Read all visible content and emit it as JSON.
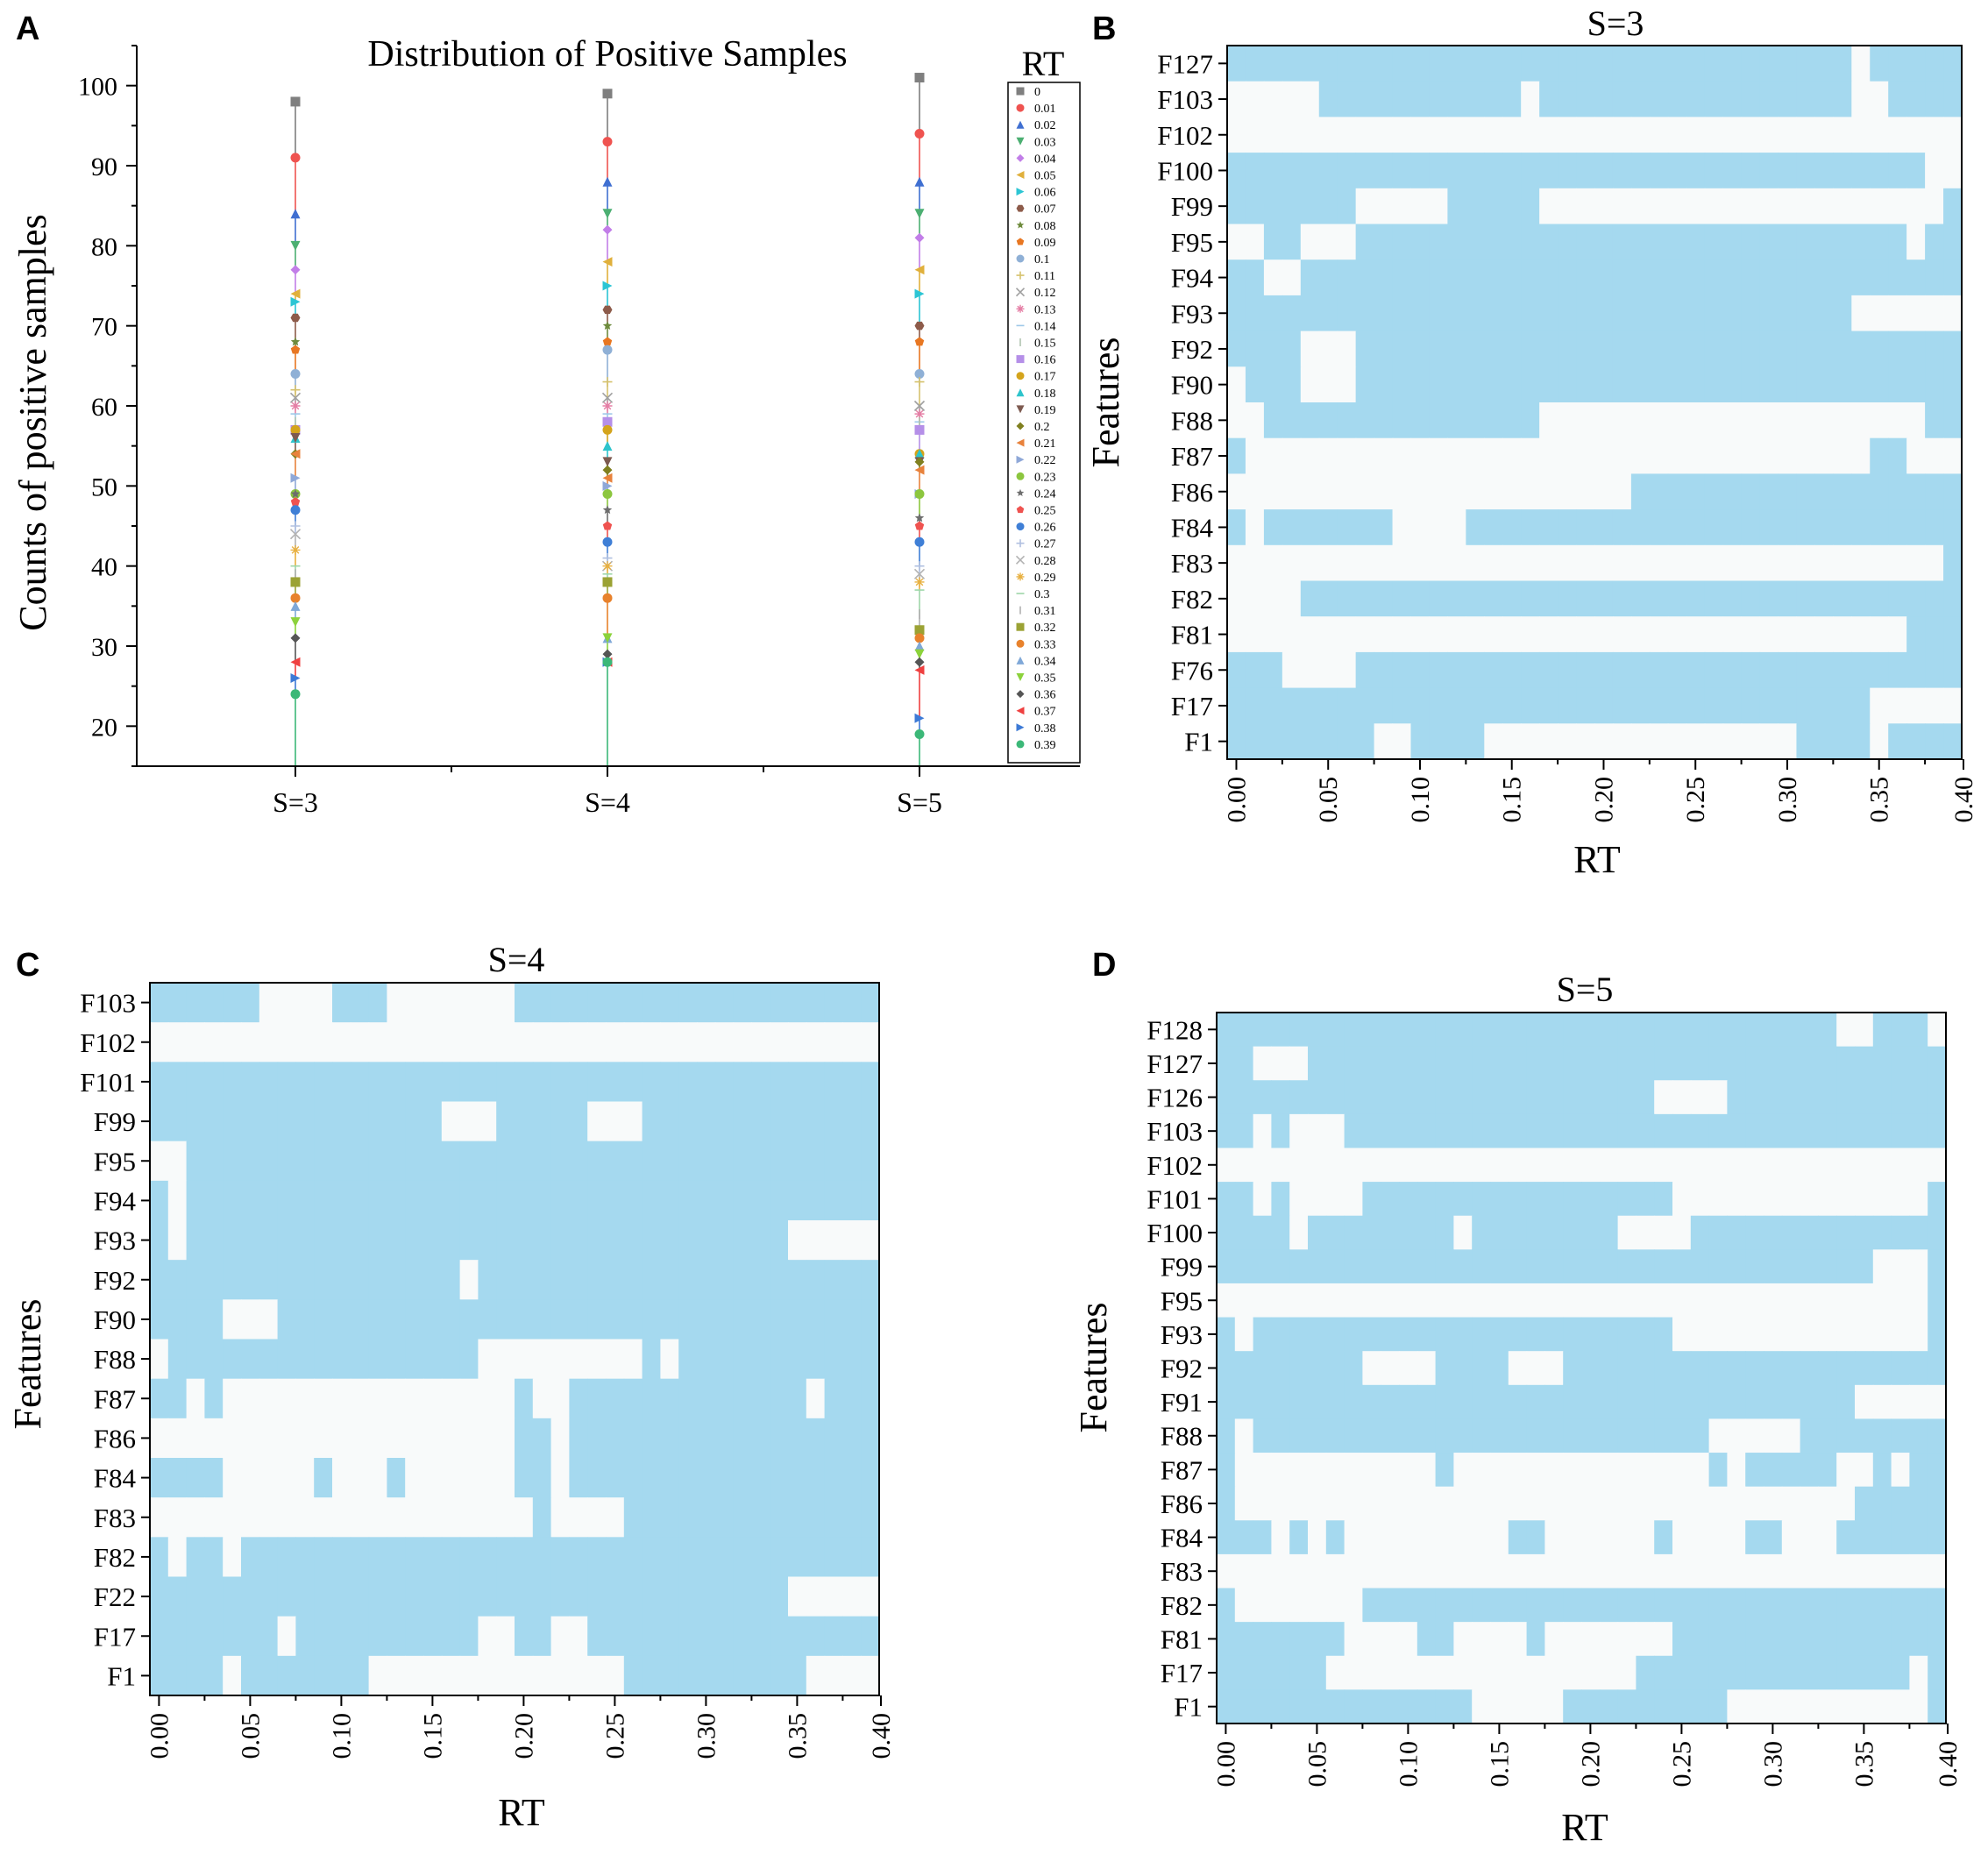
{
  "colors": {
    "cell_on": "#a5d9ef",
    "cell_off": "#f8fafa",
    "axis": "#000000"
  },
  "panels": {
    "a": "A",
    "b": "B",
    "c": "C",
    "d": "D"
  },
  "chart_data": [
    {
      "type": "scatter",
      "panel": "A",
      "title": "Distribution of Positive Samples",
      "xlabel": "",
      "ylabel": "Counts of positive samples",
      "categories": [
        "S=3",
        "S=4",
        "S=5"
      ],
      "ylim": [
        15,
        105
      ],
      "yticks": [
        20,
        30,
        40,
        50,
        60,
        70,
        80,
        90,
        100
      ],
      "legend_title": "RT",
      "legend_position": "right",
      "series": [
        {
          "name": "0",
          "color": "#7f7f7f",
          "marker": "square",
          "values": [
            98,
            99,
            101
          ]
        },
        {
          "name": "0.01",
          "color": "#ef5350",
          "marker": "circle",
          "values": [
            91,
            93,
            94
          ]
        },
        {
          "name": "0.02",
          "color": "#3f6fd1",
          "marker": "triangle-up",
          "values": [
            84,
            88,
            88
          ]
        },
        {
          "name": "0.03",
          "color": "#4caf72",
          "marker": "triangle-down",
          "values": [
            80,
            84,
            84
          ]
        },
        {
          "name": "0.04",
          "color": "#c27ee8",
          "marker": "diamond",
          "values": [
            77,
            82,
            81
          ]
        },
        {
          "name": "0.05",
          "color": "#e0b03c",
          "marker": "triangle-left",
          "values": [
            74,
            78,
            77
          ]
        },
        {
          "name": "0.06",
          "color": "#2cc5d4",
          "marker": "triangle-right",
          "values": [
            73,
            75,
            74
          ]
        },
        {
          "name": "0.07",
          "color": "#8d5b4a",
          "marker": "hexagon",
          "values": [
            71,
            72,
            70
          ]
        },
        {
          "name": "0.08",
          "color": "#6e8b3d",
          "marker": "star",
          "values": [
            68,
            70,
            68
          ]
        },
        {
          "name": "0.09",
          "color": "#e87722",
          "marker": "pentagon",
          "values": [
            67,
            68,
            68
          ]
        },
        {
          "name": "0.1",
          "color": "#8fb0d6",
          "marker": "circle",
          "values": [
            64,
            67,
            64
          ]
        },
        {
          "name": "0.11",
          "color": "#d6c26e",
          "marker": "plus",
          "values": [
            62,
            63,
            63
          ]
        },
        {
          "name": "0.12",
          "color": "#a0a0a0",
          "marker": "cross",
          "values": [
            61,
            61,
            60
          ]
        },
        {
          "name": "0.13",
          "color": "#e57ea5",
          "marker": "asterisk",
          "values": [
            60,
            60,
            59
          ]
        },
        {
          "name": "0.14",
          "color": "#9ec8e8",
          "marker": "hline",
          "values": [
            59,
            59,
            58
          ]
        },
        {
          "name": "0.15",
          "color": "#b0c4b0",
          "marker": "vline",
          "values": [
            58,
            58,
            58
          ]
        },
        {
          "name": "0.16",
          "color": "#b58fe8",
          "marker": "square",
          "values": [
            57,
            58,
            57
          ]
        },
        {
          "name": "0.17",
          "color": "#d4a41c",
          "marker": "circle",
          "values": [
            57,
            57,
            54
          ]
        },
        {
          "name": "0.18",
          "color": "#2ec4cc",
          "marker": "triangle-up",
          "values": [
            56,
            55,
            54
          ]
        },
        {
          "name": "0.19",
          "color": "#7d5a50",
          "marker": "triangle-down",
          "values": [
            56,
            53,
            53
          ]
        },
        {
          "name": "0.2",
          "color": "#808020",
          "marker": "diamond",
          "values": [
            54,
            52,
            53
          ]
        },
        {
          "name": "0.21",
          "color": "#e8823c",
          "marker": "triangle-left",
          "values": [
            54,
            51,
            52
          ]
        },
        {
          "name": "0.22",
          "color": "#8fa8d8",
          "marker": "triangle-right",
          "values": [
            51,
            50,
            49
          ]
        },
        {
          "name": "0.23",
          "color": "#8cc63f",
          "marker": "circle",
          "values": [
            49,
            49,
            49
          ]
        },
        {
          "name": "0.24",
          "color": "#6e6e6e",
          "marker": "star",
          "values": [
            49,
            47,
            46
          ]
        },
        {
          "name": "0.25",
          "color": "#ef5350",
          "marker": "pentagon",
          "values": [
            48,
            45,
            45
          ]
        },
        {
          "name": "0.26",
          "color": "#3f7fd6",
          "marker": "circle",
          "values": [
            47,
            43,
            43
          ]
        },
        {
          "name": "0.27",
          "color": "#b0c0e0",
          "marker": "plus",
          "values": [
            45,
            41,
            40
          ]
        },
        {
          "name": "0.28",
          "color": "#b3b3b3",
          "marker": "cross",
          "values": [
            44,
            40,
            39
          ]
        },
        {
          "name": "0.29",
          "color": "#e8b040",
          "marker": "asterisk",
          "values": [
            42,
            40,
            38
          ]
        },
        {
          "name": "0.3",
          "color": "#9ed6a8",
          "marker": "hline",
          "values": [
            40,
            39,
            37
          ]
        },
        {
          "name": "0.31",
          "color": "#b0b0b0",
          "marker": "vline",
          "values": [
            39,
            38,
            34
          ]
        },
        {
          "name": "0.32",
          "color": "#9ba234",
          "marker": "square",
          "values": [
            38,
            38,
            32
          ]
        },
        {
          "name": "0.33",
          "color": "#e8822c",
          "marker": "circle",
          "values": [
            36,
            36,
            31
          ]
        },
        {
          "name": "0.34",
          "color": "#7fa8d8",
          "marker": "triangle-up",
          "values": [
            35,
            31,
            30
          ]
        },
        {
          "name": "0.35",
          "color": "#8cd23c",
          "marker": "triangle-down",
          "values": [
            33,
            31,
            29
          ]
        },
        {
          "name": "0.36",
          "color": "#555555",
          "marker": "diamond",
          "values": [
            31,
            29,
            28
          ]
        },
        {
          "name": "0.37",
          "color": "#ef4040",
          "marker": "triangle-left",
          "values": [
            28,
            28,
            27
          ]
        },
        {
          "name": "0.38",
          "color": "#3d7ad6",
          "marker": "triangle-right",
          "values": [
            26,
            28,
            21
          ]
        },
        {
          "name": "0.39",
          "color": "#3cb878",
          "marker": "circle",
          "values": [
            24,
            28,
            19
          ]
        }
      ]
    },
    {
      "type": "heatmap",
      "panel": "B",
      "title": "S=3",
      "xlabel": "RT",
      "ylabel": "Features",
      "xlim": [
        0,
        0.4
      ],
      "xticks": [
        "0.00",
        "0.05",
        "0.10",
        "0.15",
        "0.20",
        "0.25",
        "0.30",
        "0.35",
        "0.40"
      ],
      "columns": 40,
      "rows": [
        "F127",
        "F103",
        "F102",
        "F100",
        "F99",
        "F95",
        "F94",
        "F93",
        "F92",
        "F90",
        "F88",
        "F87",
        "F86",
        "F84",
        "F83",
        "F82",
        "F81",
        "F76",
        "F17",
        "F1"
      ],
      "grid": [
        "1111111111111111111111111111111111011111",
        "0000011111111111011111111111111111001111",
        "0000000000000000000000000000000000000000",
        "1111111111111111111111111111111111111100",
        "1111111000001111100000000000000000000001",
        "0011000111111111111111111111111111111011",
        "1100111111111111111111111111111111111111",
        "1111111111111111111111111111111111000000",
        "1111000111111111111111111111111111111111",
        "0111000111111111111111111111111111111111",
        "0011111111111111100000000000000000000011",
        "1000000000000000000000000000000000011000",
        "0000000000000000000000111111111111111111",
        "1011111110000111111111111111111111111111",
        "0000000000000000000000000000000000000001",
        "0000111111111111111111111111111111111111",
        "0000000000000000000000000000000000000111",
        "1110000111111111111111111111111111111111",
        "1111111111111111111111111111111111100000",
        "1111111100111100000000000000000111101111"
      ]
    },
    {
      "type": "heatmap",
      "panel": "C",
      "title": "S=4",
      "xlabel": "RT",
      "ylabel": "Features",
      "xlim": [
        0,
        0.4
      ],
      "xticks": [
        "0.00",
        "0.05",
        "0.10",
        "0.15",
        "0.20",
        "0.25",
        "0.30",
        "0.35",
        "0.40"
      ],
      "columns": 40,
      "rows": [
        "F103",
        "F102",
        "F101",
        "F99",
        "F95",
        "F94",
        "F93",
        "F92",
        "F90",
        "F88",
        "F87",
        "F86",
        "F84",
        "F83",
        "F82",
        "F22",
        "F17",
        "F1"
      ],
      "grid": [
        "1111110000111000000011111111111111111111",
        "0000000000000000000000000000000000000000",
        "1111111111111111111111111111111111111111",
        "1111111111111111000111110001111111111111",
        "0011111111111111111111111111111111111111",
        "1011111111111111111111111111111111111111",
        "1011111111111111111111111111111111100000",
        "1111111111111111101111111111111111111111",
        "1111000111111111111111111111111111111111",
        "0111111111111111110000000001011111111111",
        "1101000000000000000010011111111111110111",
        "0000000000000000000011011111111111111111",
        "1111000001000100000011011111111111111111",
        "0000000000000000000001000011111111111111",
        "1011011111111111111111111111111111111111",
        "1111111111111111111111111111111111100000",
        "1111111011111111110011001111111111111111",
        "1111011111110000000000000011111111110000"
      ]
    },
    {
      "type": "heatmap",
      "panel": "D",
      "title": "S=5",
      "xlabel": "RT",
      "ylabel": "Features",
      "xlim": [
        0,
        0.4
      ],
      "xticks": [
        "0.00",
        "0.05",
        "0.10",
        "0.15",
        "0.20",
        "0.25",
        "0.30",
        "0.35",
        "0.40"
      ],
      "columns": 40,
      "rows": [
        "F128",
        "F127",
        "F126",
        "F103",
        "F102",
        "F101",
        "F100",
        "F99",
        "F95",
        "F93",
        "F92",
        "F91",
        "F88",
        "F87",
        "F86",
        "F84",
        "F83",
        "F82",
        "F81",
        "F17",
        "F1"
      ],
      "grid": [
        "1111111111111111111111111111111111001110",
        "1100011111111111111111111111111111111111",
        "1111111111111111111111110000111111111111",
        "1101000111111111111111111111111111111111",
        "0000000000000000000000000000000000000000",
        "1101000011111111111111111000000000000001",
        "1111011111111011111111000011111111111111",
        "1111111111111111111111111111111111110001",
        "0000000000000000000000000000000000000001",
        "1011111111111111111111111000000000000001",
        "1111111100001111000111111111111111111111",
        "1111111111111111111111111111111111100000",
        "1011111111111111111111111110000011111111",
        "1000000000001000000000000001011111001011",
        "1000000000000000000000000000000000011111",
        "1110101000000000110000001000011000111111",
        "0000000000000000000000000000000000000000",
        "1000000011111111111111111111111111111111",
        "1111111000011000010000000111111111111111",
        "1111110000000000000000011111111111111101",
        "1111111111111100000111111111000000000001"
      ]
    }
  ]
}
